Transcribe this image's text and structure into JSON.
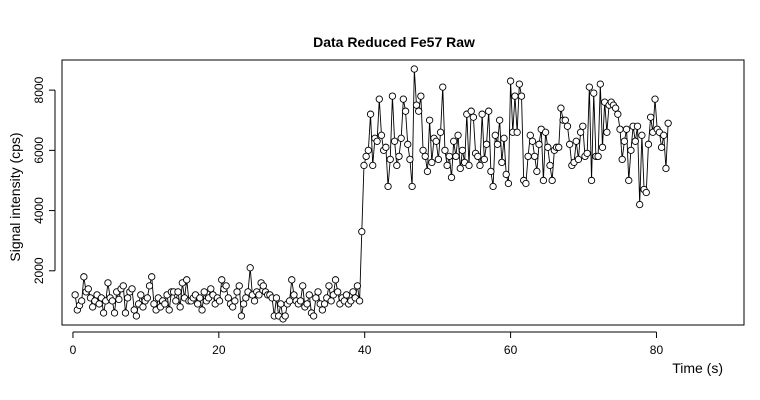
{
  "chart_data": {
    "type": "line",
    "title": "Data Reduced Fe57 Raw",
    "xlabel": "Time (s)",
    "ylabel": "Signal intensity (cps)",
    "xlim": [
      -1.5,
      92
    ],
    "ylim": [
      200,
      9000
    ],
    "xticks": [
      0,
      20,
      40,
      60,
      80
    ],
    "yticks": [
      2000,
      4000,
      6000,
      8000
    ],
    "grid": false,
    "legend": "none",
    "colors": {
      "line": "#000000",
      "marker_stroke": "#000000",
      "marker_fill": "#ffffff"
    },
    "marker": "open-circle",
    "x_start": 0.3,
    "x_step": 0.3,
    "values": [
      1200,
      700,
      850,
      1000,
      1800,
      1300,
      1400,
      1100,
      800,
      1000,
      1200,
      900,
      1100,
      600,
      1000,
      1600,
      1100,
      1000,
      600,
      1300,
      1050,
      1400,
      1500,
      600,
      1100,
      1300,
      1400,
      700,
      500,
      900,
      1200,
      800,
      1000,
      1100,
      1500,
      1800,
      900,
      700,
      1100,
      800,
      1000,
      900,
      1200,
      700,
      1300,
      1300,
      1000,
      1300,
      800,
      1600,
      1100,
      1700,
      1000,
      1000,
      1100,
      1200,
      900,
      1100,
      700,
      1300,
      1000,
      1100,
      1400,
      1200,
      900,
      1100,
      1000,
      1700,
      1400,
      1500,
      1100,
      900,
      800,
      1000,
      1300,
      1500,
      500,
      900,
      1100,
      1300,
      2100,
      1200,
      1000,
      1300,
      1200,
      1600,
      1500,
      1300,
      1200,
      1200,
      1100,
      500,
      1100,
      500,
      900,
      400,
      500,
      900,
      1000,
      1700,
      1200,
      1000,
      900,
      1000,
      1500,
      800,
      900,
      1200,
      600,
      500,
      1100,
      1300,
      900,
      700,
      900,
      1100,
      1500,
      1000,
      1200,
      1700,
      1300,
      900,
      1100,
      1000,
      1200,
      900,
      1000,
      1300,
      1100,
      1500,
      1000,
      3300,
      5500,
      5800,
      6000,
      7200,
      5500,
      6400,
      6300,
      7700,
      6500,
      6000,
      6100,
      4800,
      5700,
      7800,
      6300,
      5500,
      5800,
      6400,
      7700,
      7300,
      6200,
      5700,
      4800,
      8700,
      7500,
      7300,
      7800,
      6000,
      5800,
      5300,
      7000,
      5600,
      6400,
      6300,
      5700,
      6600,
      8100,
      6000,
      5500,
      5800,
      5100,
      6300,
      5800,
      6500,
      5400,
      6000,
      5600,
      7200,
      5500,
      7300,
      7100,
      5900,
      5800,
      5500,
      7200,
      5700,
      6200,
      7300,
      5300,
      4800,
      6500,
      6200,
      7000,
      5600,
      6400,
      5200,
      4900,
      8300,
      6600,
      7800,
      6600,
      8200,
      7800,
      5000,
      4900,
      5800,
      6500,
      6300,
      5800,
      5300,
      6200,
      6700,
      5000,
      6600,
      6100,
      5500,
      5000,
      6000,
      6100,
      6100,
      7400,
      7000,
      7000,
      6800,
      6200,
      5500,
      5600,
      6300,
      5700,
      6600,
      6800,
      5800,
      5900,
      8100,
      5000,
      7900,
      5800,
      5800,
      8200,
      6100,
      7600,
      6600,
      7500,
      7600,
      7500,
      7400,
      7200,
      6700,
      5700,
      6300,
      6700,
      5000,
      6000,
      6800,
      6300,
      6800,
      4200,
      6500,
      4700,
      4600,
      6200,
      7100,
      6600,
      7700,
      6700,
      6600,
      6100,
      6500,
      5400,
      6900
    ]
  }
}
